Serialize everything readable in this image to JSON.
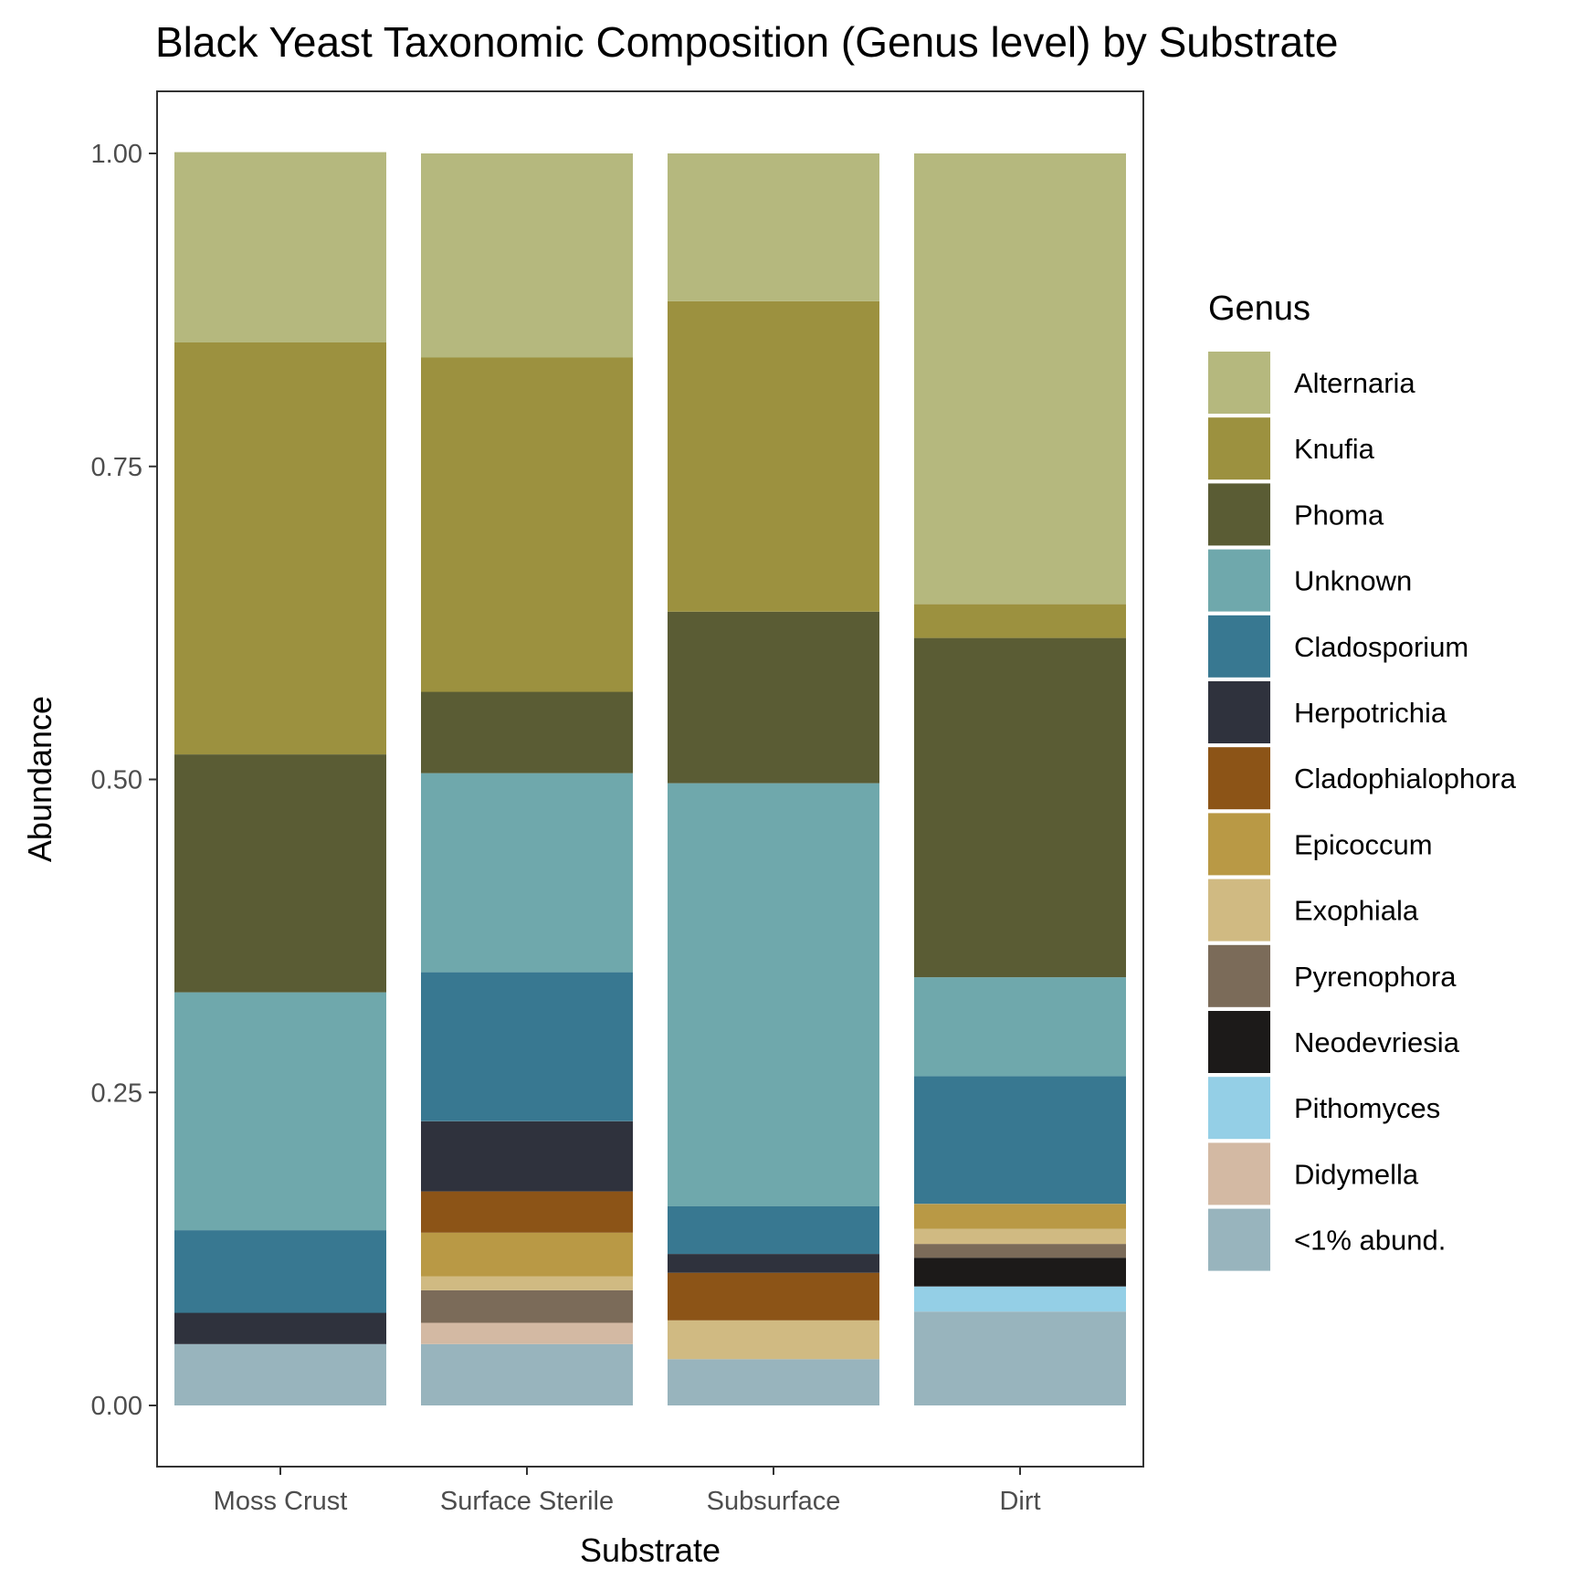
{
  "chart_data": {
    "type": "bar",
    "stacked": true,
    "title": "Black Yeast Taxonomic Composition (Genus level) by Substrate",
    "xlabel": "Substrate",
    "ylabel": "Abundance",
    "ylim": [
      0,
      1
    ],
    "y_ticks": [
      "0.00",
      "0.25",
      "0.50",
      "0.75",
      "1.00"
    ],
    "grid": false,
    "legend_title": "Genus",
    "legend_position": "right",
    "categories": [
      "Moss Crust",
      "Surface Sterile",
      "Subsurface",
      "Dirt"
    ],
    "series": [
      {
        "name": "<1% abund.",
        "color": "#98B4BD",
        "values": [
          0.049,
          0.049,
          0.037,
          0.075
        ]
      },
      {
        "name": "Didymella",
        "color": "#D3B9A3",
        "values": [
          0,
          0.017,
          0,
          0
        ]
      },
      {
        "name": "Pithomyces",
        "color": "#94CFE6",
        "values": [
          0,
          0,
          0,
          0.02
        ]
      },
      {
        "name": "Neodevriesia",
        "color": "#1C1A19",
        "values": [
          0,
          0,
          0,
          0.023
        ]
      },
      {
        "name": "Pyrenophora",
        "color": "#7B6B59",
        "values": [
          0,
          0.026,
          0,
          0.011
        ]
      },
      {
        "name": "Exophiala",
        "color": "#D0BA82",
        "values": [
          0,
          0.011,
          0.031,
          0.012
        ]
      },
      {
        "name": "Epicoccum",
        "color": "#B99945",
        "values": [
          0,
          0.035,
          0,
          0.02
        ]
      },
      {
        "name": "Cladophialophora",
        "color": "#8C5417",
        "values": [
          0,
          0.033,
          0.038,
          0
        ]
      },
      {
        "name": "Herpotrichia",
        "color": "#2F323D",
        "values": [
          0.025,
          0.056,
          0.015,
          0
        ]
      },
      {
        "name": "Cladosporium",
        "color": "#387891",
        "values": [
          0.066,
          0.119,
          0.038,
          0.102
        ]
      },
      {
        "name": "Unknown",
        "color": "#6FA8AC",
        "values": [
          0.19,
          0.159,
          0.338,
          0.079
        ]
      },
      {
        "name": "Phoma",
        "color": "#5A5C34",
        "values": [
          0.19,
          0.065,
          0.137,
          0.271
        ]
      },
      {
        "name": "Knufia",
        "color": "#9C913F",
        "values": [
          0.329,
          0.267,
          0.248,
          0.027
        ]
      },
      {
        "name": "Alternaria",
        "color": "#B5B87E",
        "values": [
          0.152,
          0.163,
          0.118,
          0.36
        ]
      }
    ],
    "legend_order": [
      "Alternaria",
      "Knufia",
      "Phoma",
      "Unknown",
      "Cladosporium",
      "Herpotrichia",
      "Cladophialophora",
      "Epicoccum",
      "Exophiala",
      "Pyrenophora",
      "Neodevriesia",
      "Pithomyces",
      "Didymella",
      "<1% abund."
    ]
  }
}
